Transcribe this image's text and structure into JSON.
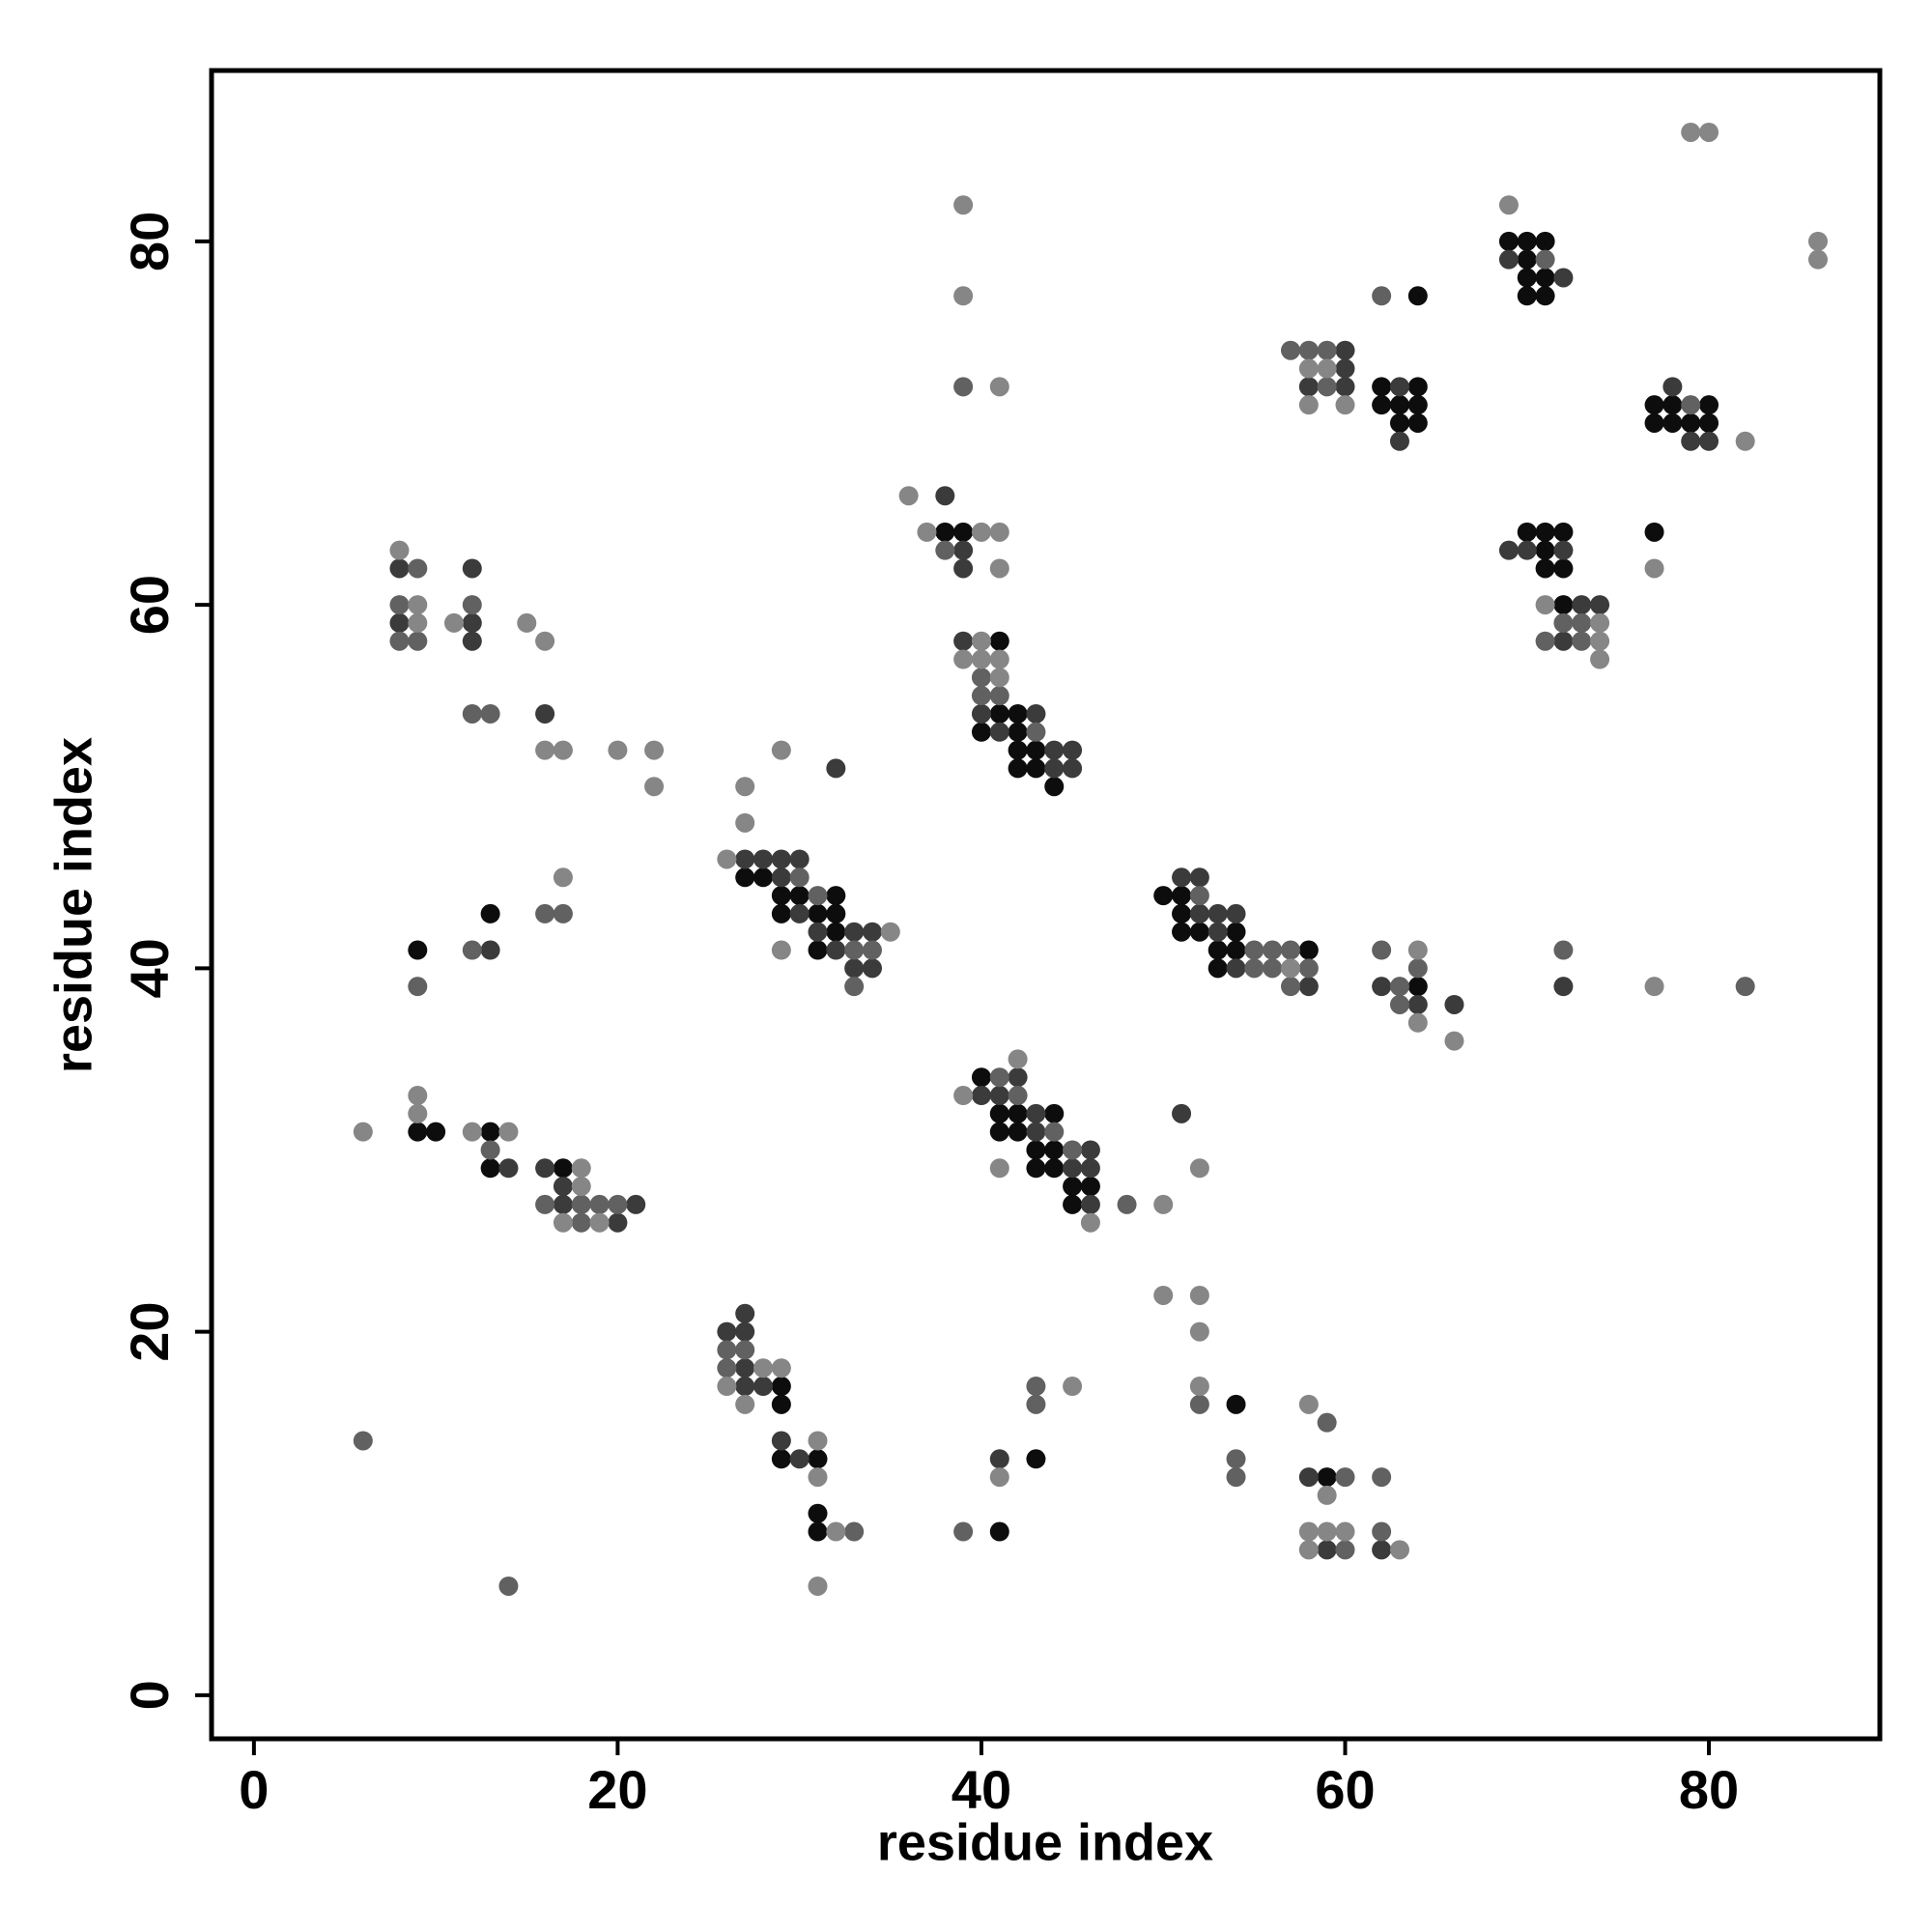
{
  "chart_data": {
    "type": "scatter",
    "x_label": "residue index",
    "y_label": "residue index",
    "xlim": [
      -2.33,
      89.4
    ],
    "ylim": [
      -2.4,
      89.4
    ],
    "xticks": [
      0,
      20,
      40,
      60,
      80
    ],
    "yticks": [
      0,
      20,
      40,
      60,
      80
    ],
    "series": [
      {
        "color": "#0d0d0d",
        "x": [
          69,
          70,
          71,
          70,
          70,
          71,
          70,
          71,
          64,
          62,
          64,
          62,
          63,
          64,
          63,
          64,
          77,
          78,
          80,
          77,
          78,
          79,
          80,
          38,
          39,
          70,
          71,
          72,
          71,
          71,
          72,
          72,
          77,
          41,
          41,
          42,
          40,
          42,
          42,
          43,
          42,
          43,
          44,
          27,
          28,
          29,
          30,
          32,
          29,
          31,
          32,
          32,
          31,
          13,
          9,
          50,
          51,
          51,
          51,
          52,
          54,
          53,
          54,
          58,
          53,
          64,
          40,
          41,
          42,
          44,
          41,
          42,
          43,
          44,
          43,
          44,
          45,
          46,
          45,
          9,
          10,
          13,
          13,
          17,
          29,
          29,
          29,
          31,
          31,
          31,
          54,
          43,
          41,
          59
        ],
        "y": [
          80,
          80,
          80,
          79,
          78,
          78,
          77,
          77,
          77,
          72,
          72,
          71,
          71,
          71,
          70,
          70,
          71,
          71,
          71,
          70,
          70,
          70,
          70,
          64,
          64,
          64,
          64,
          64,
          63,
          62,
          62,
          60,
          64,
          58,
          54,
          54,
          53,
          53,
          52,
          52,
          51,
          51,
          50,
          45,
          45,
          44,
          44,
          44,
          43,
          43,
          43,
          42,
          41,
          43,
          41,
          44,
          44,
          43,
          42,
          42,
          42,
          41,
          41,
          41,
          40,
          39,
          34,
          32,
          32,
          32,
          31,
          31,
          30,
          30,
          29,
          29,
          28,
          28,
          27,
          31,
          31,
          31,
          29,
          29,
          17,
          16,
          13,
          13,
          10,
          9,
          16,
          13,
          9,
          12
        ]
      },
      {
        "color": "#3b3b3b",
        "x": [
          69,
          72,
          60,
          60,
          58,
          60,
          63,
          63,
          78,
          79,
          80,
          38,
          39,
          39,
          69,
          70,
          72,
          73,
          74,
          72,
          39,
          40,
          43,
          41,
          44,
          45,
          44,
          45,
          8,
          8,
          12,
          12,
          12,
          16,
          32,
          27,
          28,
          29,
          30,
          29,
          30,
          31,
          33,
          34,
          32,
          33,
          34,
          13,
          51,
          52,
          52,
          53,
          54,
          53,
          54,
          58,
          62,
          64,
          66,
          72,
          42,
          40,
          41,
          43,
          43,
          46,
          45,
          46,
          46,
          51,
          14,
          16,
          17,
          17,
          21,
          20,
          26,
          27,
          27,
          27,
          27,
          28,
          29,
          30,
          41,
          58,
          59,
          62
        ],
        "y": [
          79,
          78,
          74,
          73,
          72,
          72,
          72,
          69,
          72,
          69,
          69,
          66,
          63,
          62,
          63,
          63,
          63,
          60,
          60,
          58,
          58,
          54,
          54,
          53,
          52,
          52,
          51,
          51,
          62,
          59,
          62,
          59,
          58,
          54,
          51,
          46,
          46,
          46,
          46,
          45,
          43,
          42,
          42,
          42,
          41,
          40,
          40,
          41,
          45,
          45,
          43,
          43,
          43,
          42,
          40,
          39,
          39,
          38,
          38,
          39,
          34,
          33,
          33,
          32,
          31,
          30,
          29,
          29,
          27,
          32,
          29,
          29,
          28,
          27,
          27,
          26,
          20,
          21,
          20,
          18,
          17,
          17,
          14,
          13,
          13,
          12,
          8,
          8
        ]
      },
      {
        "color": "#616161",
        "x": [
          71,
          57,
          58,
          59,
          59,
          62,
          79,
          39,
          38,
          72,
          73,
          71,
          73,
          40,
          40,
          41,
          43,
          9,
          8,
          8,
          9,
          12,
          12,
          13,
          30,
          31,
          33,
          34,
          33,
          16,
          17,
          12,
          9,
          52,
          55,
          56,
          57,
          55,
          56,
          58,
          57,
          62,
          64,
          63,
          63,
          72,
          82,
          41,
          42,
          44,
          45,
          48,
          13,
          16,
          18,
          19,
          20,
          18,
          26,
          27,
          26,
          33,
          14,
          6,
          52,
          54,
          54,
          43,
          43,
          39,
          59,
          60,
          62,
          62,
          60
        ],
        "y": [
          79,
          74,
          74,
          74,
          72,
          77,
          71,
          72,
          63,
          59,
          59,
          58,
          58,
          56,
          55,
          55,
          53,
          62,
          60,
          58,
          58,
          60,
          54,
          54,
          45,
          44,
          41,
          41,
          39,
          43,
          43,
          41,
          39,
          44,
          41,
          41,
          41,
          40,
          40,
          40,
          39,
          41,
          40,
          39,
          38,
          41,
          39,
          34,
          33,
          31,
          30,
          27,
          30,
          27,
          27,
          27,
          27,
          26,
          19,
          19,
          18,
          9,
          6,
          14,
          16,
          13,
          12,
          17,
          16,
          9,
          15,
          12,
          12,
          9,
          8
        ]
      },
      {
        "color": "#868686",
        "x": [
          79,
          80,
          86,
          86,
          39,
          39,
          41,
          69,
          58,
          59,
          58,
          60,
          82,
          36,
          37,
          40,
          41,
          41,
          71,
          74,
          74,
          74,
          77,
          40,
          39,
          40,
          41,
          41,
          8,
          9,
          9,
          11,
          15,
          16,
          16,
          17,
          20,
          22,
          22,
          29,
          27,
          27,
          26,
          35,
          29,
          17,
          57,
          64,
          64,
          66,
          77,
          42,
          39,
          46,
          41,
          50,
          52,
          6,
          9,
          9,
          12,
          14,
          18,
          18,
          17,
          19,
          28,
          29,
          26,
          27,
          31,
          31,
          32,
          31,
          50,
          52,
          52,
          52,
          45,
          41,
          58,
          59,
          58,
          59,
          60,
          58,
          63
        ],
        "y": [
          86,
          86,
          80,
          79,
          82,
          77,
          72,
          82,
          73,
          73,
          71,
          71,
          69,
          66,
          64,
          64,
          64,
          62,
          60,
          59,
          58,
          57,
          62,
          58,
          57,
          57,
          57,
          56,
          63,
          60,
          59,
          59,
          59,
          58,
          52,
          52,
          52,
          52,
          50,
          52,
          50,
          48,
          46,
          42,
          41,
          45,
          40,
          41,
          37,
          36,
          39,
          35,
          33,
          26,
          29,
          27,
          29,
          31,
          33,
          32,
          31,
          31,
          29,
          28,
          26,
          26,
          18,
          18,
          17,
          16,
          14,
          12,
          9,
          6,
          22,
          22,
          20,
          17,
          17,
          12,
          16,
          11,
          9,
          9,
          9,
          8,
          8
        ]
      }
    ]
  }
}
